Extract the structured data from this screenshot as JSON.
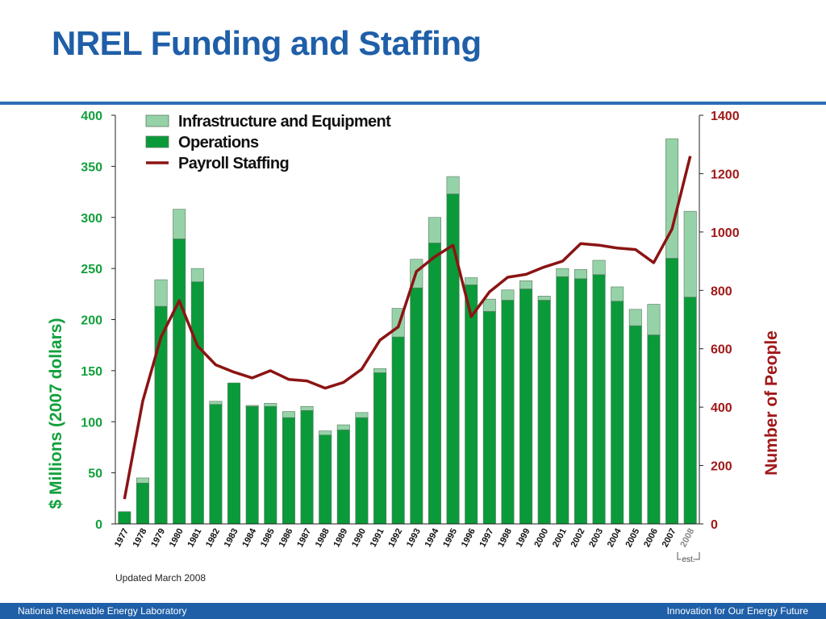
{
  "slide": {
    "title": "NREL Funding and Staffing"
  },
  "footer": {
    "left": "National Renewable Energy Laboratory",
    "right": "Innovation for Our Energy Future"
  },
  "colors": {
    "operations": "#0a9a3a",
    "infrastructure": "#96d2a8",
    "payroll": "#8b1414",
    "left_axis": "#12a03c",
    "right_axis": "#a01818",
    "title": "#1f5fa8"
  },
  "chart_data": {
    "type": "bar",
    "stacked": true,
    "categories": [
      "1977",
      "1978",
      "1979",
      "1980",
      "1981",
      "1982",
      "1983",
      "1984",
      "1985",
      "1986",
      "1987",
      "1988",
      "1989",
      "1990",
      "1991",
      "1992",
      "1993",
      "1994",
      "1995",
      "1996",
      "1997",
      "1998",
      "1999",
      "2000",
      "2001",
      "2002",
      "2003",
      "2004",
      "2005",
      "2006",
      "2007",
      "2008"
    ],
    "series": [
      {
        "name": "Operations",
        "axis": "left",
        "values": [
          12,
          40,
          213,
          279,
          237,
          117,
          138,
          115,
          115,
          104,
          111,
          87,
          92,
          104,
          148,
          183,
          231,
          275,
          323,
          234,
          208,
          219,
          230,
          219,
          242,
          240,
          244,
          218,
          194,
          185,
          260,
          222
        ]
      },
      {
        "name": "Infrastructure and Equipment",
        "axis": "left",
        "values": [
          0,
          5,
          26,
          29,
          13,
          3,
          0,
          1,
          3,
          6,
          4,
          4,
          5,
          5,
          4,
          28,
          28,
          25,
          17,
          7,
          12,
          10,
          8,
          4,
          8,
          9,
          14,
          14,
          16,
          30,
          117,
          84
        ]
      },
      {
        "name": "Payroll Staffing",
        "type": "line",
        "axis": "right",
        "values": [
          85,
          420,
          640,
          765,
          610,
          545,
          520,
          500,
          525,
          495,
          490,
          465,
          485,
          530,
          630,
          675,
          865,
          915,
          955,
          710,
          795,
          845,
          855,
          880,
          900,
          960,
          955,
          945,
          940,
          895,
          1010,
          1260
        ]
      }
    ],
    "left_axis": {
      "label": "$ Millions  (2007 dollars)",
      "ylim": [
        0,
        400
      ],
      "ticks": [
        "0",
        "50",
        "100",
        "150",
        "200",
        "250",
        "300",
        "350",
        "400"
      ]
    },
    "right_axis": {
      "label": "Number of People",
      "ylim": [
        0,
        1400
      ],
      "ticks": [
        "0",
        "200",
        "400",
        "600",
        "800",
        "1000",
        "1200",
        "1400"
      ]
    },
    "legend": {
      "placement": "top-left",
      "items": [
        "Infrastructure and Equipment",
        "Operations",
        "Payroll Staffing"
      ]
    },
    "notes": {
      "updated": "Updated March 2008",
      "est": "est."
    },
    "estimated_category": "2008",
    "grid": false
  }
}
